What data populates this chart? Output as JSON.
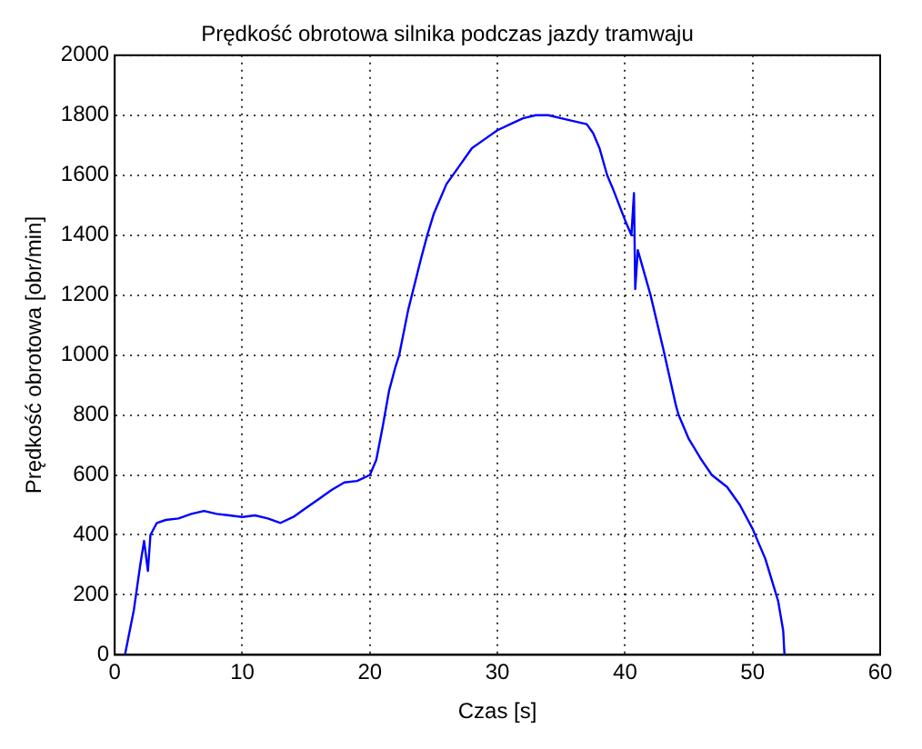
{
  "chart_data": {
    "type": "line",
    "title": "Prędkość obrotowa silnika podczas jazdy tramwaju",
    "xlabel": "Czas [s]",
    "ylabel": "Prędkość obrotowa [obr/min]",
    "series": [
      {
        "color": "#0000ff",
        "x": [
          0.8,
          1.5,
          2,
          2.3,
          2.6,
          2.8,
          3.3,
          4,
          5,
          6,
          7,
          8,
          9,
          10,
          11,
          12,
          13,
          14,
          15,
          16,
          17,
          18,
          19,
          20,
          20.5,
          21,
          21.5,
          22,
          22.3,
          23,
          24,
          24.5,
          25,
          26,
          27,
          28,
          29,
          30,
          31,
          32,
          33,
          34,
          35,
          36,
          37,
          37.5,
          38,
          38.6,
          39,
          40,
          40.5,
          40.7,
          40.8,
          41,
          42,
          43,
          44,
          44.2,
          45,
          46,
          46.8,
          48,
          49,
          50,
          51,
          52,
          52.4,
          52.5
        ],
        "values": [
          0,
          150,
          300,
          380,
          280,
          400,
          440,
          450,
          455,
          470,
          480,
          470,
          465,
          460,
          465,
          455,
          440,
          460,
          490,
          520,
          550,
          575,
          580,
          600,
          650,
          760,
          880,
          960,
          1000,
          1150,
          1320,
          1400,
          1470,
          1570,
          1630,
          1690,
          1720,
          1750,
          1770,
          1790,
          1800,
          1800,
          1790,
          1780,
          1770,
          1740,
          1690,
          1600,
          1560,
          1450,
          1400,
          1540,
          1220,
          1350,
          1200,
          1020,
          830,
          800,
          720,
          650,
          600,
          560,
          500,
          420,
          320,
          180,
          80,
          0
        ]
      }
    ],
    "xlim": [
      0,
      60
    ],
    "xticks": [
      0,
      10,
      20,
      30,
      40,
      50,
      60
    ],
    "ylim": [
      0,
      2000
    ],
    "yticks": [
      0,
      200,
      400,
      600,
      800,
      1000,
      1200,
      1400,
      1600,
      1800,
      2000
    ],
    "grid": true,
    "legend": false,
    "marker": "none",
    "line_style": "solid"
  }
}
